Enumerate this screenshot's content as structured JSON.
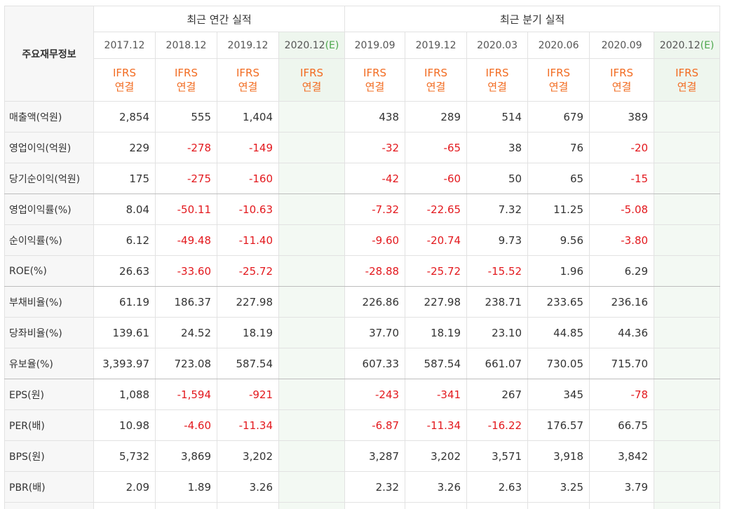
{
  "header": {
    "corner_label": "주요재무정보",
    "annual_group": "최근 연간 실적",
    "quarter_group": "최근 분기 실적",
    "periods": [
      {
        "label": "2017.12",
        "est": ""
      },
      {
        "label": "2018.12",
        "est": ""
      },
      {
        "label": "2019.12",
        "est": ""
      },
      {
        "label": "2020.12",
        "est": "(E)"
      },
      {
        "label": "2019.09",
        "est": ""
      },
      {
        "label": "2019.12",
        "est": ""
      },
      {
        "label": "2020.03",
        "est": ""
      },
      {
        "label": "2020.06",
        "est": ""
      },
      {
        "label": "2020.09",
        "est": ""
      },
      {
        "label": "2020.12",
        "est": "(E)"
      }
    ],
    "ifrs_top": "IFRS",
    "ifrs_bottom": "연결"
  },
  "rows": [
    {
      "label": "매출액(억원)",
      "values": [
        "2,854",
        "555",
        "1,404",
        "",
        "438",
        "289",
        "514",
        "679",
        "389",
        ""
      ]
    },
    {
      "label": "영업이익(억원)",
      "values": [
        "229",
        "-278",
        "-149",
        "",
        "-32",
        "-65",
        "38",
        "76",
        "-20",
        ""
      ]
    },
    {
      "label": "당기순이익(억원)",
      "values": [
        "175",
        "-275",
        "-160",
        "",
        "-42",
        "-60",
        "50",
        "65",
        "-15",
        ""
      ]
    },
    {
      "label": "영업이익률(%)",
      "values": [
        "8.04",
        "-50.11",
        "-10.63",
        "",
        "-7.32",
        "-22.65",
        "7.32",
        "11.25",
        "-5.08",
        ""
      ]
    },
    {
      "label": "순이익률(%)",
      "values": [
        "6.12",
        "-49.48",
        "-11.40",
        "",
        "-9.60",
        "-20.74",
        "9.73",
        "9.56",
        "-3.80",
        ""
      ]
    },
    {
      "label": "ROE(%)",
      "values": [
        "26.63",
        "-33.60",
        "-25.72",
        "",
        "-28.88",
        "-25.72",
        "-15.52",
        "1.96",
        "6.29",
        ""
      ]
    },
    {
      "label": "부채비율(%)",
      "values": [
        "61.19",
        "186.37",
        "227.98",
        "",
        "226.86",
        "227.98",
        "238.71",
        "233.65",
        "236.16",
        ""
      ]
    },
    {
      "label": "당좌비율(%)",
      "values": [
        "139.61",
        "24.52",
        "18.19",
        "",
        "37.70",
        "18.19",
        "23.10",
        "44.85",
        "44.36",
        ""
      ]
    },
    {
      "label": "유보율(%)",
      "values": [
        "3,393.97",
        "723.08",
        "587.54",
        "",
        "607.33",
        "587.54",
        "661.07",
        "730.05",
        "715.70",
        ""
      ]
    },
    {
      "label": "EPS(원)",
      "values": [
        "1,088",
        "-1,594",
        "-921",
        "",
        "-243",
        "-341",
        "267",
        "345",
        "-78",
        ""
      ]
    },
    {
      "label": "PER(배)",
      "values": [
        "10.98",
        "-4.60",
        "-11.34",
        "",
        "-6.87",
        "-11.34",
        "-16.22",
        "176.57",
        "66.75",
        ""
      ]
    },
    {
      "label": "BPS(원)",
      "values": [
        "5,732",
        "3,869",
        "3,202",
        "",
        "3,287",
        "3,202",
        "3,571",
        "3,918",
        "3,842",
        ""
      ]
    },
    {
      "label": "PBR(배)",
      "values": [
        "2.09",
        "1.89",
        "3.26",
        "",
        "2.32",
        "3.26",
        "2.63",
        "3.25",
        "3.79",
        ""
      ]
    }
  ],
  "colors": {
    "negative": "#e3191e",
    "ifrs": "#f26c22",
    "estimate_tag": "#4ca64c",
    "estimate_bg": "#f3f9f3"
  }
}
